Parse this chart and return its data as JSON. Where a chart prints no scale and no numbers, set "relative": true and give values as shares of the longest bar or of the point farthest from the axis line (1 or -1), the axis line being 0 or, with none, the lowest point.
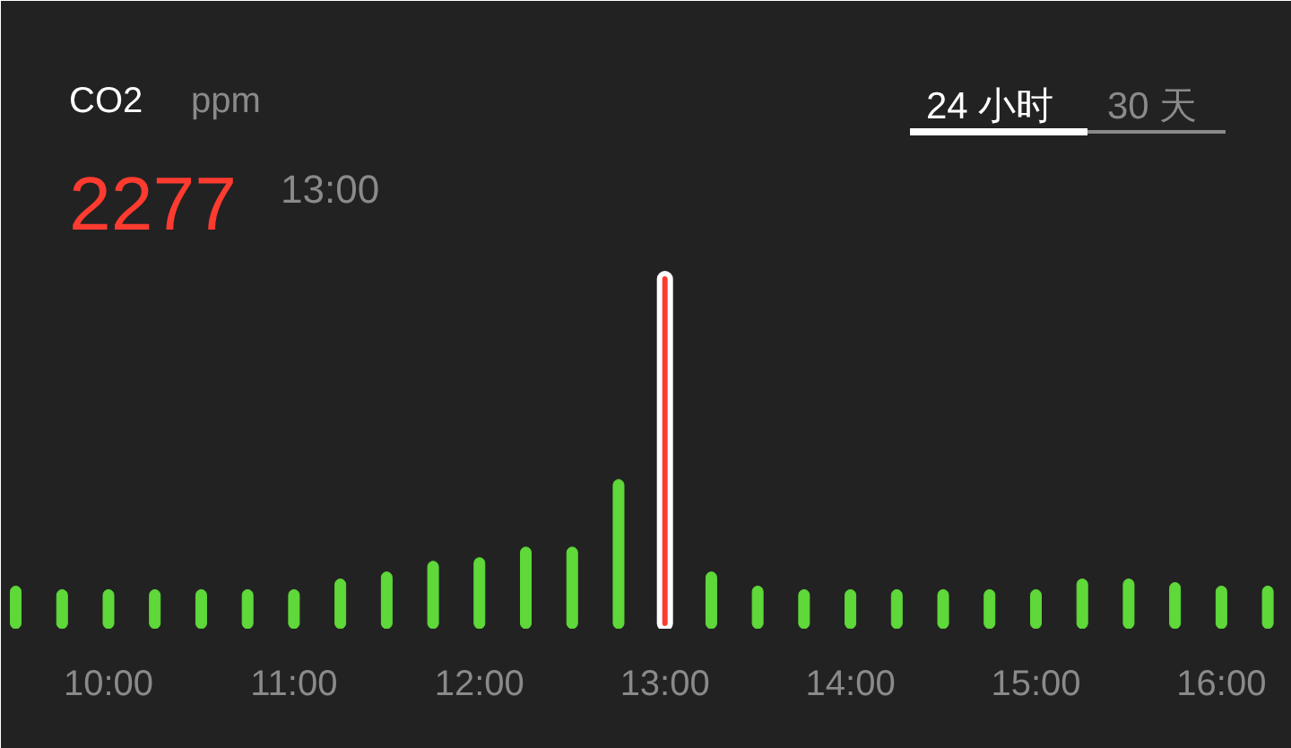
{
  "chart_data": {
    "type": "bar",
    "title": "CO2",
    "relative": true,
    "grid": false,
    "annotations": [
      "ppm",
      "2277",
      "13:00",
      "24 小时",
      "30 天"
    ],
    "x": [
      9.5,
      9.75,
      10,
      10.25,
      10.5,
      10.75,
      11,
      11.25,
      11.5,
      11.75,
      12,
      12.25,
      12.5,
      12.75,
      13,
      13.25,
      13.5,
      13.75,
      14,
      14.25,
      14.5,
      14.75,
      15,
      15.25,
      15.5,
      15.75,
      16,
      16.25
    ],
    "values": [
      0.12,
      0.11,
      0.11,
      0.11,
      0.11,
      0.11,
      0.11,
      0.14,
      0.16,
      0.19,
      0.2,
      0.23,
      0.23,
      0.42,
      1,
      0.16,
      0.12,
      0.11,
      0.11,
      0.11,
      0.11,
      0.11,
      0.11,
      0.14,
      0.14,
      0.13,
      0.12,
      0.12
    ],
    "colors": [
      "#5fd83a",
      "#5fd83a",
      "#5fd83a",
      "#5fd83a",
      "#5fd83a",
      "#5fd83a",
      "#5fd83a",
      "#5fd83a",
      "#5fd83a",
      "#5fd83a",
      "#5fd83a",
      "#5fd83a",
      "#5fd83a",
      "#5fd83a",
      "#ff3b30",
      "#5fd83a",
      "#5fd83a",
      "#5fd83a",
      "#5fd83a",
      "#5fd83a",
      "#5fd83a",
      "#5fd83a",
      "#5fd83a",
      "#5fd83a",
      "#5fd83a",
      "#5fd83a",
      "#5fd83a",
      "#5fd83a"
    ],
    "xlim": [
      9.42,
      16.38
    ],
    "xticks": [
      {
        "value": 10,
        "label": "10:00"
      },
      {
        "value": 11,
        "label": "11:00"
      },
      {
        "value": 12,
        "label": "12:00"
      },
      {
        "value": 13,
        "label": "13:00"
      },
      {
        "value": 14,
        "label": "14:00"
      },
      {
        "value": 15,
        "label": "15:00"
      },
      {
        "value": 16,
        "label": "16:00"
      }
    ]
  }
}
